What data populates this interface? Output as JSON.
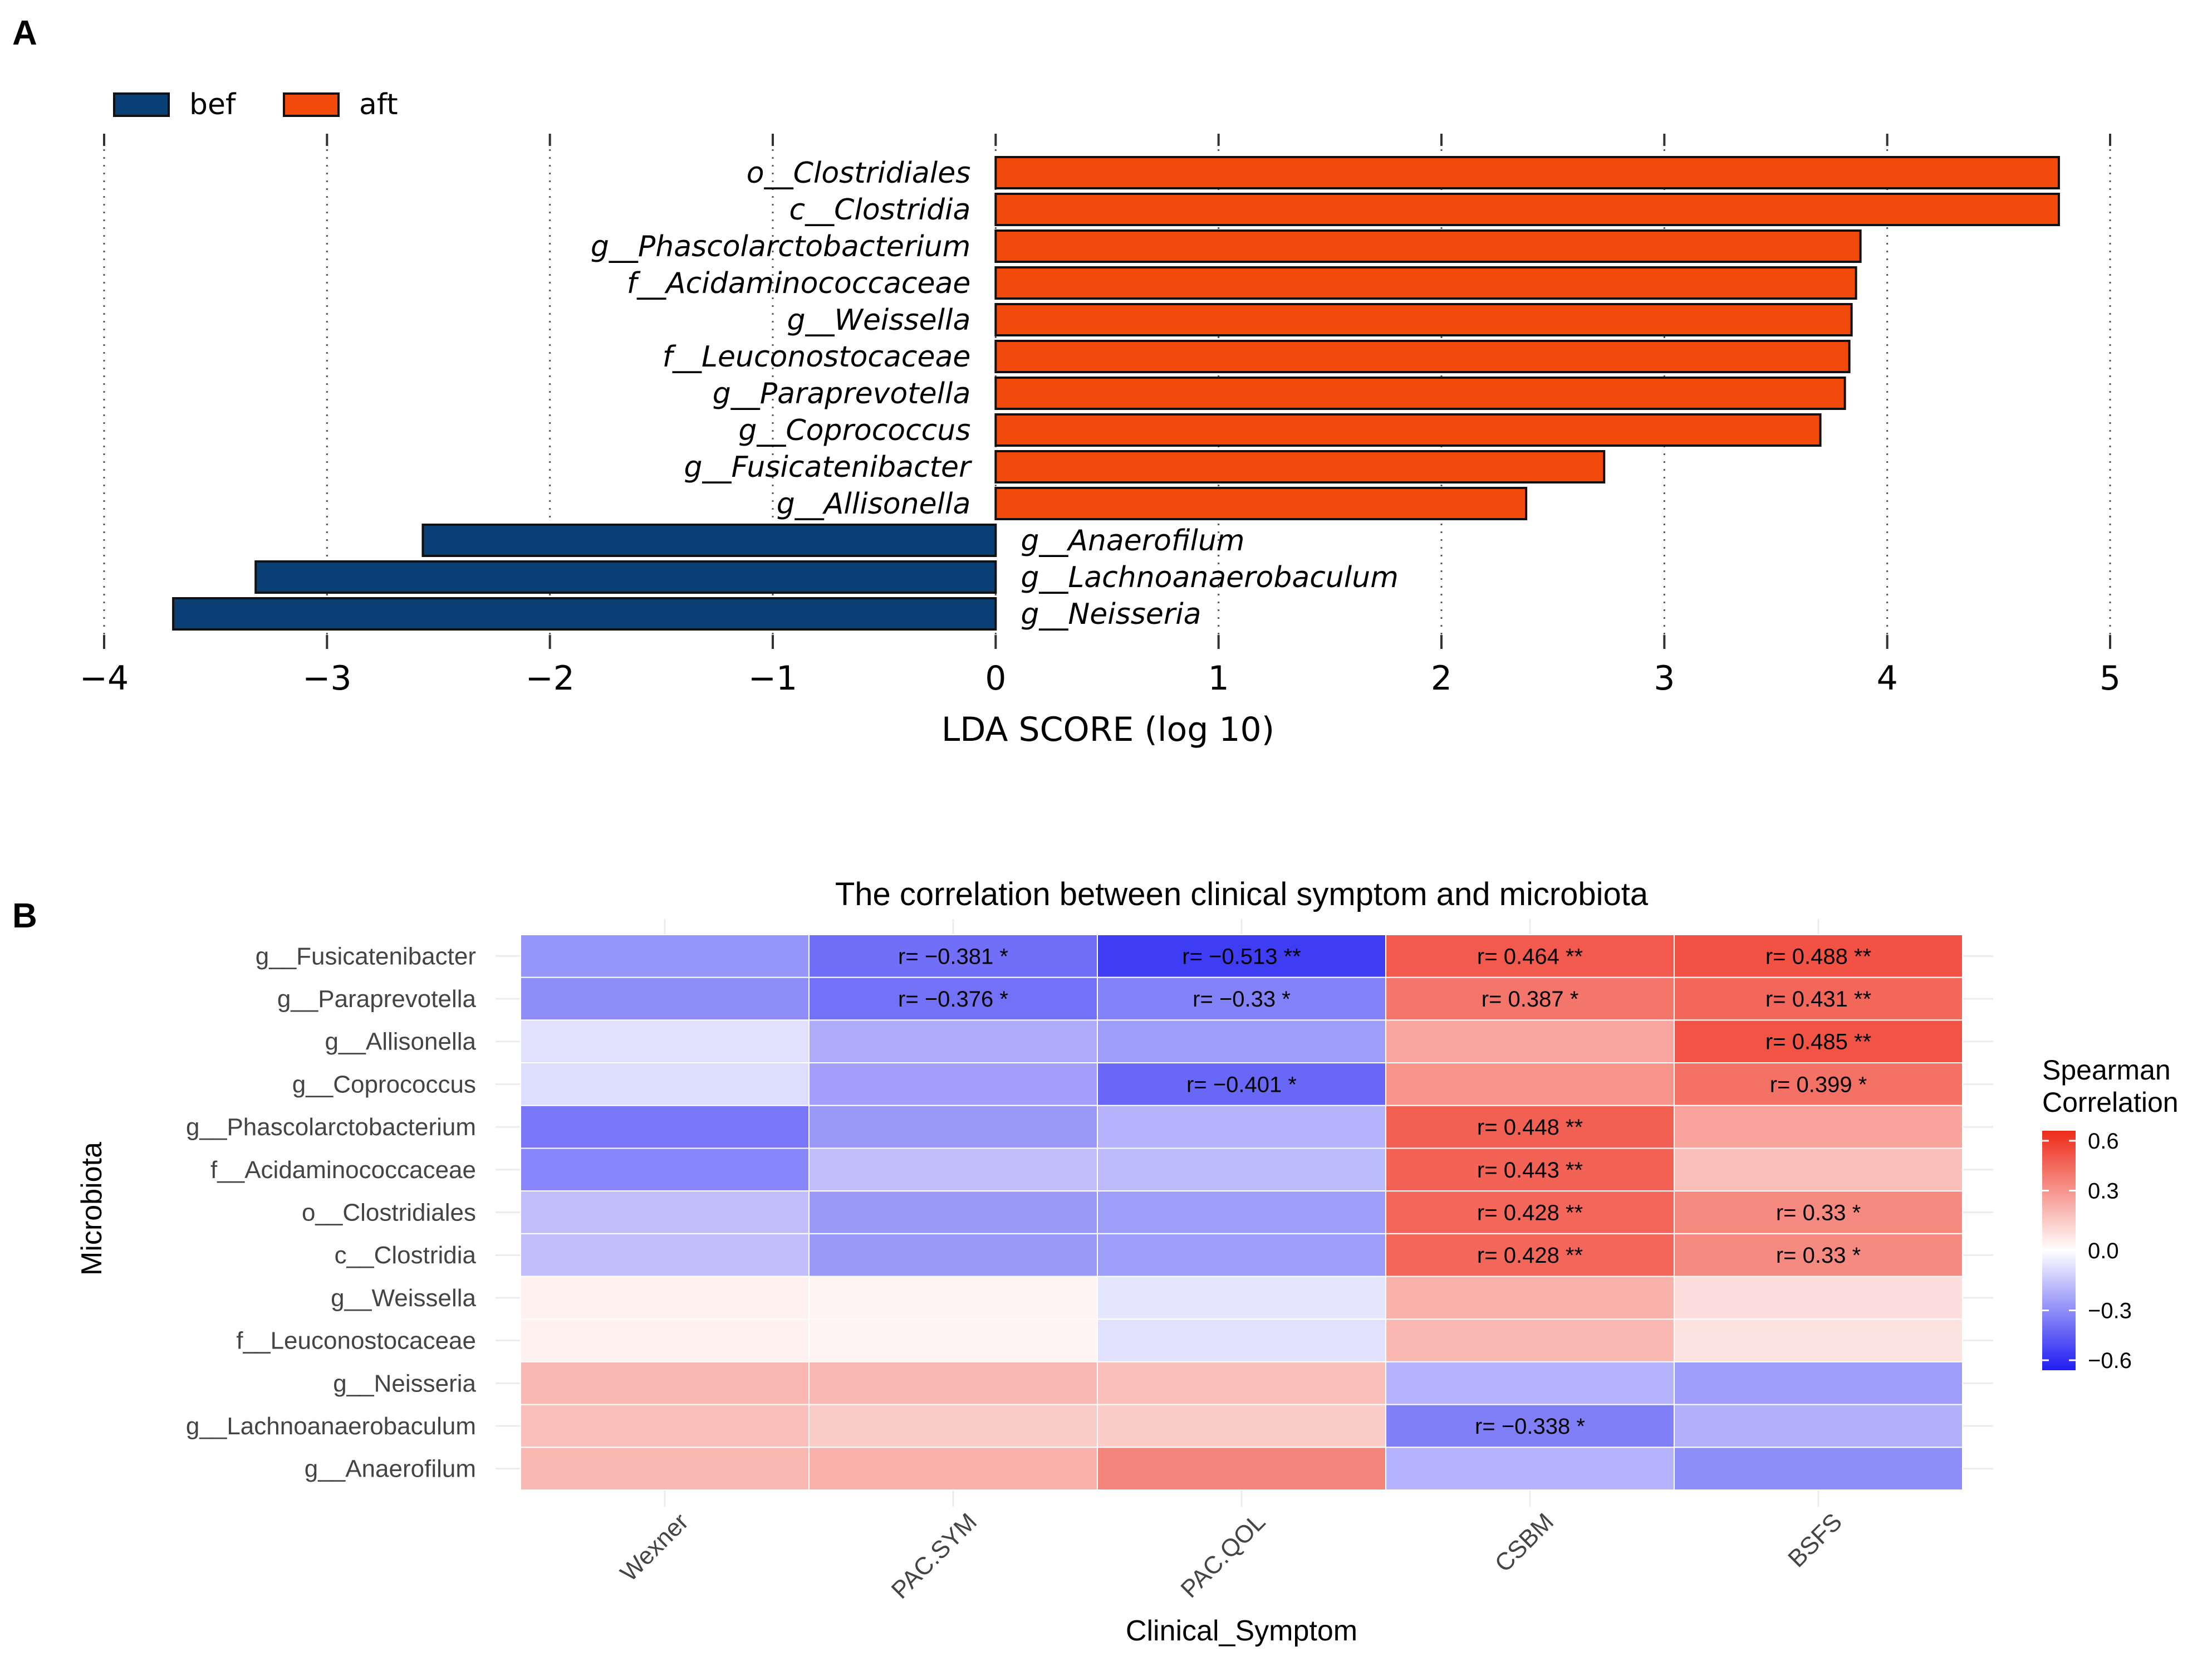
{
  "chart_data": [
    {
      "panel": "A",
      "type": "bar",
      "orientation": "horizontal",
      "xlabel": "LDA SCORE (log 10)",
      "xlim": [
        -4,
        5
      ],
      "xticks": [
        "−4",
        "−3",
        "−2",
        "−1",
        "0",
        "1",
        "2",
        "3",
        "4",
        "5"
      ],
      "grid": true,
      "legend": [
        {
          "name": "bef",
          "color": "#0a4075"
        },
        {
          "name": "aft",
          "color": "#f24a0a"
        }
      ],
      "categories": [
        "o__Clostridiales",
        "c__Clostridia",
        "g__Phascolarctobacterium",
        "f__Acidaminococcaceae",
        "g__Weissella",
        "f__Leuconostocaceae",
        "g__Paraprevotella",
        "g__Coprococcus",
        "g__Fusicatenibacter",
        "g__Allisonella",
        "g__Anaerofilum",
        "g__Lachnoanaerobaculum",
        "g__Neisseria"
      ],
      "values": [
        4.77,
        4.77,
        3.88,
        3.86,
        3.84,
        3.83,
        3.81,
        3.7,
        2.73,
        2.38,
        -2.57,
        -3.32,
        -3.69
      ],
      "groups": [
        "aft",
        "aft",
        "aft",
        "aft",
        "aft",
        "aft",
        "aft",
        "aft",
        "aft",
        "aft",
        "bef",
        "bef",
        "bef"
      ]
    },
    {
      "panel": "B",
      "type": "heatmap",
      "title": "The correlation between clinical symptom and microbiota",
      "xlabel": "Clinical_Symptom",
      "ylabel": "Microbiota",
      "columns": [
        "Wexner",
        "PAC.SYM",
        "PAC.QOL",
        "CSBM",
        "BSFS"
      ],
      "rows": [
        "g__Fusicatenibacter",
        "g__Paraprevotella",
        "g__Allisonella",
        "g__Coprococcus",
        "g__Phascolarctobacterium",
        "f__Acidaminococcaceae",
        "o__Clostridiales",
        "c__Clostridia",
        "g__Weissella",
        "f__Leuconostocaceae",
        "g__Neisseria",
        "g__Lachnoanaerobaculum",
        "g__Anaerofilum"
      ],
      "values": [
        [
          -0.28,
          -0.381,
          -0.513,
          0.464,
          0.488
        ],
        [
          -0.3,
          -0.376,
          -0.33,
          0.387,
          0.431
        ],
        [
          -0.08,
          -0.22,
          -0.26,
          0.25,
          0.485
        ],
        [
          -0.09,
          -0.25,
          -0.401,
          0.3,
          0.399
        ],
        [
          -0.36,
          -0.27,
          -0.2,
          0.448,
          0.26
        ],
        [
          -0.32,
          -0.17,
          -0.18,
          0.443,
          0.18
        ],
        [
          -0.17,
          -0.27,
          -0.26,
          0.428,
          0.33
        ],
        [
          -0.17,
          -0.27,
          -0.26,
          0.428,
          0.33
        ],
        [
          0.04,
          0.03,
          -0.07,
          0.22,
          0.09
        ],
        [
          0.04,
          0.03,
          -0.08,
          0.2,
          0.08
        ],
        [
          0.2,
          0.2,
          0.18,
          -0.2,
          -0.26
        ],
        [
          0.18,
          0.14,
          0.14,
          -0.338,
          -0.21
        ],
        [
          0.2,
          0.22,
          0.34,
          -0.2,
          -0.3
        ]
      ],
      "annotations": [
        [
          "",
          "r= −0.381 *",
          "r= −0.513 **",
          "r= 0.464 **",
          "r= 0.488 **"
        ],
        [
          "",
          "r= −0.376 *",
          "r= −0.33 *",
          "r= 0.387 *",
          "r= 0.431 **"
        ],
        [
          "",
          "",
          "",
          "",
          "r= 0.485 **"
        ],
        [
          "",
          "",
          "r= −0.401 *",
          "",
          "r= 0.399 *"
        ],
        [
          "",
          "",
          "",
          "r= 0.448 **",
          ""
        ],
        [
          "",
          "",
          "",
          "r= 0.443 **",
          ""
        ],
        [
          "",
          "",
          "",
          "r= 0.428 **",
          "r= 0.33 *"
        ],
        [
          "",
          "",
          "",
          "r= 0.428 **",
          "r= 0.33 *"
        ],
        [
          "",
          "",
          "",
          "",
          ""
        ],
        [
          "",
          "",
          "",
          "",
          ""
        ],
        [
          "",
          "",
          "",
          "",
          ""
        ],
        [
          "",
          "",
          "",
          "r= −0.338 *",
          ""
        ],
        [
          "",
          "",
          "",
          "",
          ""
        ]
      ],
      "legend": {
        "title": [
          "Spearman",
          "Correlation"
        ],
        "range": [
          -0.6,
          0.6
        ],
        "ticks": [
          0.6,
          0.3,
          0.0,
          -0.3,
          -0.6
        ],
        "tick_labels": [
          "0.6",
          "0.3",
          "0.0",
          "−0.3",
          "−0.6"
        ],
        "colors": {
          "low": "#1f1cf2",
          "mid": "#ffffff",
          "high": "#ee2a19"
        }
      }
    }
  ],
  "panel_labels": {
    "a": "A",
    "b": "B"
  }
}
